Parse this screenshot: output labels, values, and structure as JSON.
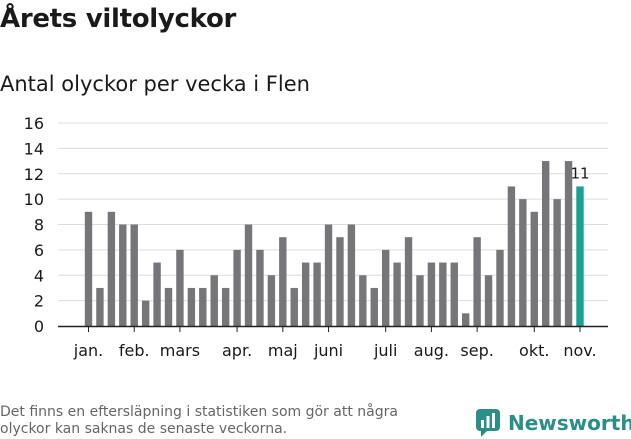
{
  "title": "Årets viltolyckor",
  "subtitle": "Antal olyckor per vecka i Flen",
  "footnote": "Det finns en eftersläpning i statistiken som gör att några olyckor kan saknas de senaste veckorna.",
  "brand": {
    "name": "Newsworthy",
    "logo_icon": "bar-chart-bubble-icon"
  },
  "colors": {
    "bar": "#767579",
    "highlight": "#17a294",
    "grid": "#dcdcdc",
    "axis": "#222222"
  },
  "chart_data": {
    "type": "bar",
    "title": "Antal olyckor per vecka i Flen",
    "xlabel": "",
    "ylabel": "",
    "ylim": [
      0,
      16
    ],
    "yticks": [
      0,
      2,
      4,
      6,
      8,
      10,
      12,
      14,
      16
    ],
    "grid": true,
    "weeks": [
      1,
      2,
      3,
      4,
      5,
      6,
      7,
      8,
      9,
      10,
      11,
      12,
      13,
      14,
      15,
      16,
      17,
      18,
      19,
      20,
      21,
      22,
      23,
      24,
      25,
      26,
      27,
      28,
      29,
      30,
      31,
      32,
      33,
      34,
      35,
      36,
      37,
      38,
      39,
      40,
      41,
      42,
      43,
      44
    ],
    "values": [
      9,
      3,
      9,
      8,
      8,
      2,
      5,
      3,
      6,
      3,
      3,
      4,
      3,
      6,
      8,
      6,
      4,
      7,
      3,
      5,
      5,
      8,
      7,
      8,
      4,
      3,
      6,
      5,
      7,
      4,
      5,
      5,
      5,
      1,
      7,
      4,
      6,
      11,
      10,
      9,
      13,
      10,
      13,
      11
    ],
    "highlight_last": true,
    "highlight_label": "11",
    "month_ticks": [
      {
        "label": "jan.",
        "week": 1
      },
      {
        "label": "feb.",
        "week": 5
      },
      {
        "label": "mars",
        "week": 9
      },
      {
        "label": "apr.",
        "week": 14
      },
      {
        "label": "maj",
        "week": 18
      },
      {
        "label": "juni",
        "week": 22
      },
      {
        "label": "juli",
        "week": 27
      },
      {
        "label": "aug.",
        "week": 31
      },
      {
        "label": "sep.",
        "week": 35
      },
      {
        "label": "okt.",
        "week": 40
      },
      {
        "label": "nov.",
        "week": 44
      }
    ]
  }
}
